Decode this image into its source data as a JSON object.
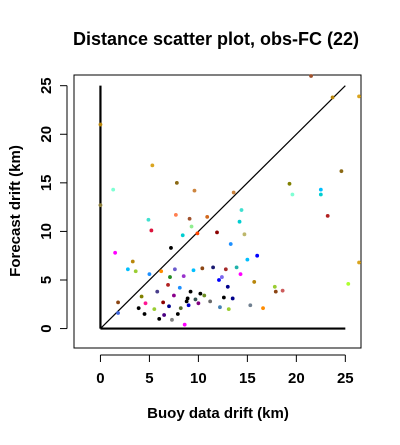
{
  "chart_data": {
    "type": "scatter",
    "title": "Distance scatter plot, obs-FC (22)",
    "xlabel": "Buoy data drift (km)",
    "ylabel": "Forecast drift (km)",
    "xlim": [
      -2.7,
      26.6
    ],
    "ylim": [
      -2.0,
      26.1
    ],
    "xticks": [
      0,
      5,
      10,
      15,
      20,
      25
    ],
    "yticks": [
      0,
      5,
      10,
      15,
      20,
      25
    ],
    "grid": false,
    "reference_lines": [
      {
        "kind": "identity",
        "from": [
          0,
          0
        ],
        "to": [
          25,
          25
        ]
      },
      {
        "kind": "axis-x",
        "from": [
          0,
          0
        ],
        "to": [
          25,
          0
        ]
      },
      {
        "kind": "axis-y",
        "from": [
          0,
          0
        ],
        "to": [
          0,
          25
        ]
      }
    ],
    "points": [
      {
        "x": 0.0,
        "y": 21.0,
        "color": "#b8860b"
      },
      {
        "x": 0.0,
        "y": 12.7,
        "color": "#8b7d3a"
      },
      {
        "x": 1.3,
        "y": 14.3,
        "color": "#7fffd4"
      },
      {
        "x": 1.5,
        "y": 7.8,
        "color": "#ff00ff"
      },
      {
        "x": 1.8,
        "y": 2.7,
        "color": "#8b4513"
      },
      {
        "x": 1.8,
        "y": 1.6,
        "color": "#4169e1"
      },
      {
        "x": 2.8,
        "y": 6.1,
        "color": "#00bfff"
      },
      {
        "x": 3.3,
        "y": 6.9,
        "color": "#b8860b"
      },
      {
        "x": 3.6,
        "y": 5.9,
        "color": "#9acd32"
      },
      {
        "x": 3.9,
        "y": 2.1,
        "color": "#000000"
      },
      {
        "x": 4.2,
        "y": 3.3,
        "color": "#808000"
      },
      {
        "x": 4.5,
        "y": 1.5,
        "color": "#000000"
      },
      {
        "x": 4.6,
        "y": 2.6,
        "color": "#ff1493"
      },
      {
        "x": 4.9,
        "y": 11.2,
        "color": "#40e0d0"
      },
      {
        "x": 5.0,
        "y": 5.6,
        "color": "#1e90ff"
      },
      {
        "x": 5.2,
        "y": 10.1,
        "color": "#dc143c"
      },
      {
        "x": 5.3,
        "y": 16.8,
        "color": "#daa520"
      },
      {
        "x": 5.5,
        "y": 2.0,
        "color": "#9acd32"
      },
      {
        "x": 5.8,
        "y": 3.8,
        "color": "#483d8b"
      },
      {
        "x": 6.0,
        "y": 1.0,
        "color": "#000000"
      },
      {
        "x": 6.2,
        "y": 5.9,
        "color": "#ff8c00"
      },
      {
        "x": 6.4,
        "y": 2.7,
        "color": "#8b0000"
      },
      {
        "x": 6.5,
        "y": 1.4,
        "color": "#4b0082"
      },
      {
        "x": 6.9,
        "y": 4.5,
        "color": "#b22222"
      },
      {
        "x": 7.0,
        "y": 2.3,
        "color": "#00008b"
      },
      {
        "x": 7.1,
        "y": 5.3,
        "color": "#228b22"
      },
      {
        "x": 7.2,
        "y": 8.3,
        "color": "#000000"
      },
      {
        "x": 7.3,
        "y": 0.9,
        "color": "#808080"
      },
      {
        "x": 7.5,
        "y": 3.4,
        "color": "#8b008b"
      },
      {
        "x": 7.6,
        "y": 6.1,
        "color": "#6a5acd"
      },
      {
        "x": 7.7,
        "y": 11.7,
        "color": "#ff7f50"
      },
      {
        "x": 7.8,
        "y": 15.0,
        "color": "#8b6914"
      },
      {
        "x": 7.9,
        "y": 1.5,
        "color": "#000000"
      },
      {
        "x": 8.1,
        "y": 4.2,
        "color": "#1e90ff"
      },
      {
        "x": 8.2,
        "y": 2.1,
        "color": "#556b2f"
      },
      {
        "x": 8.4,
        "y": 9.6,
        "color": "#00ced1"
      },
      {
        "x": 8.5,
        "y": 5.4,
        "color": "#9932cc"
      },
      {
        "x": 8.6,
        "y": 0.4,
        "color": "#ff00ff"
      },
      {
        "x": 8.8,
        "y": 2.8,
        "color": "#000000"
      },
      {
        "x": 8.9,
        "y": 3.1,
        "color": "#000000"
      },
      {
        "x": 9.0,
        "y": 2.4,
        "color": "#0000cd"
      },
      {
        "x": 9.1,
        "y": 11.3,
        "color": "#a0522d"
      },
      {
        "x": 9.2,
        "y": 3.8,
        "color": "#000000"
      },
      {
        "x": 9.3,
        "y": 10.5,
        "color": "#90ee90"
      },
      {
        "x": 9.5,
        "y": 6.0,
        "color": "#00bfff"
      },
      {
        "x": 9.6,
        "y": 14.2,
        "color": "#cd853f"
      },
      {
        "x": 9.7,
        "y": 3.0,
        "color": "#2f4f4f"
      },
      {
        "x": 9.9,
        "y": 9.8,
        "color": "#ff4500"
      },
      {
        "x": 10.0,
        "y": 2.6,
        "color": "#800080"
      },
      {
        "x": 10.2,
        "y": 3.6,
        "color": "#000000"
      },
      {
        "x": 10.4,
        "y": 6.2,
        "color": "#8b4513"
      },
      {
        "x": 10.6,
        "y": 3.4,
        "color": "#6b8e23"
      },
      {
        "x": 10.9,
        "y": 11.5,
        "color": "#d2691e"
      },
      {
        "x": 11.2,
        "y": 2.8,
        "color": "#696969"
      },
      {
        "x": 11.5,
        "y": 6.3,
        "color": "#191970"
      },
      {
        "x": 11.9,
        "y": 9.9,
        "color": "#8b0000"
      },
      {
        "x": 12.1,
        "y": 5.0,
        "color": "#0000ff"
      },
      {
        "x": 12.2,
        "y": 2.2,
        "color": "#4682b4"
      },
      {
        "x": 12.4,
        "y": 5.3,
        "color": "#7b68ee"
      },
      {
        "x": 12.6,
        "y": 3.2,
        "color": "#000000"
      },
      {
        "x": 12.8,
        "y": 6.1,
        "color": "#a52a2a"
      },
      {
        "x": 13.0,
        "y": 4.3,
        "color": "#00008b"
      },
      {
        "x": 13.1,
        "y": 2.0,
        "color": "#9acd32"
      },
      {
        "x": 13.3,
        "y": 8.7,
        "color": "#1e90ff"
      },
      {
        "x": 13.5,
        "y": 3.1,
        "color": "#00008b"
      },
      {
        "x": 13.6,
        "y": 14.0,
        "color": "#cd853f"
      },
      {
        "x": 13.9,
        "y": 6.3,
        "color": "#20b2aa"
      },
      {
        "x": 14.2,
        "y": 11.0,
        "color": "#00ced1"
      },
      {
        "x": 14.3,
        "y": 5.6,
        "color": "#ff00ff"
      },
      {
        "x": 14.4,
        "y": 12.2,
        "color": "#40e0d0"
      },
      {
        "x": 14.7,
        "y": 9.7,
        "color": "#bdb76b"
      },
      {
        "x": 15.0,
        "y": 7.1,
        "color": "#00bfff"
      },
      {
        "x": 15.3,
        "y": 2.4,
        "color": "#708090"
      },
      {
        "x": 15.7,
        "y": 4.8,
        "color": "#b8860b"
      },
      {
        "x": 16.0,
        "y": 7.5,
        "color": "#0000ff"
      },
      {
        "x": 16.6,
        "y": 2.1,
        "color": "#ff8c00"
      },
      {
        "x": 17.8,
        "y": 4.3,
        "color": "#9acd32"
      },
      {
        "x": 17.9,
        "y": 3.8,
        "color": "#8b4513"
      },
      {
        "x": 18.6,
        "y": 3.9,
        "color": "#cd5c5c"
      },
      {
        "x": 19.3,
        "y": 14.9,
        "color": "#808000"
      },
      {
        "x": 19.6,
        "y": 13.8,
        "color": "#7fffd4"
      },
      {
        "x": 21.5,
        "y": 26.0,
        "color": "#a0522d"
      },
      {
        "x": 22.5,
        "y": 14.3,
        "color": "#00bfff"
      },
      {
        "x": 22.5,
        "y": 13.8,
        "color": "#00ced1"
      },
      {
        "x": 23.2,
        "y": 11.6,
        "color": "#b22222"
      },
      {
        "x": 23.7,
        "y": 23.8,
        "color": "#b8860b"
      },
      {
        "x": 24.6,
        "y": 16.2,
        "color": "#8b6914"
      },
      {
        "x": 25.3,
        "y": 4.6,
        "color": "#adff2f"
      },
      {
        "x": 26.4,
        "y": 23.9,
        "color": "#daa520"
      },
      {
        "x": 26.4,
        "y": 6.8,
        "color": "#daa520"
      }
    ]
  }
}
